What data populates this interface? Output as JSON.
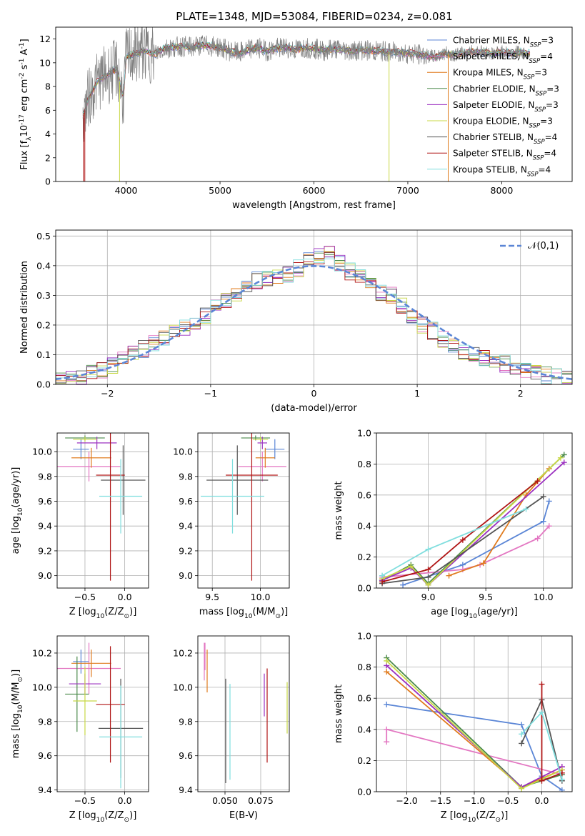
{
  "figure": {
    "title": "PLATE=1348, MJD=53084, FIBERID=0234, z=0.081"
  },
  "model_labels": [
    "Chabrier MILES, N$_{SSP}$=3",
    "Salpeter MILES, N$_{SSP}$=4",
    "Kroupa MILES, N$_{SSP}$=3",
    "Chabrier ELODIE, N$_{SSP}$=3",
    "Salpeter ELODIE, N$_{SSP}$=3",
    "Kroupa ELODIE, N$_{SSP}$=3",
    "Chabrier STELIB, N$_{SSP}$=4",
    "Salpeter STELIB, N$_{SSP}$=4",
    "Kroupa STELIB, N$_{SSP}$=4"
  ],
  "legend_display": [
    {
      "name": "Chabrier MILES, N",
      "sub": "SSP",
      "tail": "=3",
      "color": "#5b86d6"
    },
    {
      "name": "Salpeter MILES, N",
      "sub": "SSP",
      "tail": "=4",
      "color": "#e377c2"
    },
    {
      "name": "Kroupa MILES, N",
      "sub": "SSP",
      "tail": "=3",
      "color": "#e07b1e"
    },
    {
      "name": "Chabrier ELODIE, N",
      "sub": "SSP",
      "tail": "=3",
      "color": "#4a8a4a"
    },
    {
      "name": "Salpeter ELODIE, N",
      "sub": "SSP",
      "tail": "=3",
      "color": "#9b30c0"
    },
    {
      "name": "Kroupa ELODIE, N",
      "sub": "SSP",
      "tail": "=3",
      "color": "#c8d845"
    },
    {
      "name": "Chabrier STELIB, N",
      "sub": "SSP",
      "tail": "=4",
      "color": "#555555"
    },
    {
      "name": "Salpeter STELIB, N",
      "sub": "SSP",
      "tail": "=4",
      "color": "#b01515"
    },
    {
      "name": "Kroupa STELIB, N",
      "sub": "SSP",
      "tail": "=4",
      "color": "#80dede"
    }
  ],
  "chart_data": [
    {
      "id": "spectrum",
      "type": "line",
      "xlabel": "wavelength [Angstrom, rest frame]",
      "ylabel": "Flux [f$_\\lambda$10$^{-17}$ erg cm$^{-2}$ s$^{-1}$ A$^{-1}$]",
      "xlim": [
        3250,
        8750
      ],
      "ylim": [
        0,
        13
      ],
      "xticks": [
        4000,
        5000,
        6000,
        7000,
        8000
      ],
      "yticks": [
        0,
        2,
        4,
        6,
        8,
        10,
        12
      ],
      "data_color": "#808080",
      "x": [
        3540,
        3600,
        3700,
        3800,
        3900,
        3970,
        4000,
        4100,
        4200,
        4300,
        4400,
        4500,
        4600,
        4700,
        4800,
        4900,
        5000,
        5100,
        5200,
        5300,
        5400,
        5500,
        5600,
        5700,
        5800,
        5900,
        6000,
        6100,
        6200,
        6300,
        6400,
        6500,
        6600,
        6700,
        6800,
        6900,
        7000,
        7100,
        7200,
        7300,
        7400,
        7500,
        7600,
        7700,
        7800,
        7900,
        8000,
        8100,
        8200,
        8300
      ],
      "y": [
        5.5,
        7.0,
        8.5,
        9.0,
        9.5,
        7.0,
        10.5,
        10.8,
        11.0,
        10.7,
        11.2,
        11.3,
        11.4,
        11.3,
        11.5,
        11.4,
        11.3,
        11.0,
        10.8,
        11.1,
        11.3,
        11.0,
        11.2,
        11.3,
        11.1,
        11.3,
        11.2,
        11.0,
        11.2,
        11.1,
        11.0,
        11.1,
        11.0,
        11.0,
        10.9,
        10.9,
        10.8,
        10.7,
        10.6,
        10.5,
        10.8,
        10.7,
        10.8,
        11.0,
        10.9,
        10.8,
        10.9,
        10.8,
        10.9,
        10.8
      ],
      "grid": false,
      "legend": "upper right"
    },
    {
      "id": "residual-histogram",
      "type": "line",
      "xlabel": "(data-model)/error",
      "ylabel": "Normed distribution",
      "xlim": [
        -2.5,
        2.5
      ],
      "ylim": [
        0,
        0.52
      ],
      "xticks": [
        -2,
        -1,
        0,
        1,
        2
      ],
      "yticks": [
        0.0,
        0.1,
        0.2,
        0.3,
        0.4,
        0.5
      ],
      "reference": {
        "label": "$\\mathcal{N}(0,1)$",
        "type": "gaussian",
        "mu": 0,
        "sigma": 1,
        "color": "#5b86d6"
      },
      "bin_edges": [
        -2.5,
        -2.4,
        -2.3,
        -2.2,
        -2.1,
        -2.0,
        -1.9,
        -1.8,
        -1.7,
        -1.6,
        -1.5,
        -1.4,
        -1.3,
        -1.2,
        -1.1,
        -1.0,
        -0.9,
        -0.8,
        -0.7,
        -0.6,
        -0.5,
        -0.4,
        -0.3,
        -0.2,
        -0.1,
        0.0,
        0.1,
        0.2,
        0.3,
        0.4,
        0.5,
        0.6,
        0.7,
        0.8,
        0.9,
        1.0,
        1.1,
        1.2,
        1.3,
        1.4,
        1.5,
        1.6,
        1.7,
        1.8,
        1.9,
        2.0,
        2.1,
        2.2,
        2.3,
        2.4,
        2.5
      ],
      "base_values": [
        0.02,
        0.022,
        0.03,
        0.04,
        0.05,
        0.06,
        0.08,
        0.11,
        0.12,
        0.14,
        0.15,
        0.17,
        0.19,
        0.21,
        0.23,
        0.27,
        0.28,
        0.3,
        0.33,
        0.35,
        0.36,
        0.37,
        0.37,
        0.39,
        0.42,
        0.43,
        0.44,
        0.41,
        0.38,
        0.36,
        0.33,
        0.31,
        0.3,
        0.27,
        0.23,
        0.2,
        0.18,
        0.15,
        0.13,
        0.11,
        0.1,
        0.085,
        0.08,
        0.07,
        0.06,
        0.045,
        0.035,
        0.03,
        0.025,
        0.02
      ],
      "grid": true,
      "legend": "upper right"
    },
    {
      "id": "age-vs-metallicity",
      "type": "scatter",
      "xlabel": "Z [log$_{10}$($Z/Z_\\odot$)]",
      "ylabel": "age  [log$_{10}$($age/yr$)]",
      "xlim": [
        -0.85,
        0.3
      ],
      "ylim": [
        8.9,
        10.15
      ],
      "xticks": [
        -0.5,
        0.0
      ],
      "yticks": [
        9.0,
        9.2,
        9.4,
        9.6,
        9.8,
        10.0
      ],
      "points": [
        {
          "x": -0.55,
          "xerr": 0.1,
          "y": 10.02,
          "yerr": 0.08
        },
        {
          "x": -0.45,
          "xerr": 0.4,
          "y": 9.88,
          "yerr": 0.12
        },
        {
          "x": -0.42,
          "xerr": 0.25,
          "y": 9.95,
          "yerr": 0.08
        },
        {
          "x": -0.5,
          "xerr": 0.25,
          "y": 10.11,
          "yerr": 0.02
        },
        {
          "x": -0.35,
          "xerr": 0.25,
          "y": 10.07,
          "yerr": 0.05
        },
        {
          "x": -0.5,
          "xerr": 0.15,
          "y": 10.1,
          "yerr": 0.02
        },
        {
          "x": -0.02,
          "xerr": 0.28,
          "y": 9.77,
          "yerr": 0.28
        },
        {
          "x": -0.18,
          "xerr": 0.18,
          "y": 9.81,
          "yerr": 0.85
        },
        {
          "x": -0.05,
          "xerr": 0.27,
          "y": 9.64,
          "yerr": 0.3
        }
      ],
      "grid": true
    },
    {
      "id": "age-vs-mass",
      "type": "scatter",
      "xlabel": "mass [log$_{10}$($M/M_\\odot$)]",
      "ylabel": "",
      "xlim": [
        9.35,
        10.3
      ],
      "ylim": [
        8.9,
        10.15
      ],
      "xticks": [
        9.5,
        10.0
      ],
      "yticks": [
        9.0,
        9.2,
        9.4,
        9.6,
        9.8,
        10.0
      ],
      "points": [
        {
          "x": 10.15,
          "xerr": 0.1,
          "y": 10.02,
          "yerr": 0.08
        },
        {
          "x": 10.02,
          "xerr": 0.25,
          "y": 9.88,
          "yerr": 0.12
        },
        {
          "x": 10.05,
          "xerr": 0.1,
          "y": 9.95,
          "yerr": 0.08
        },
        {
          "x": 9.95,
          "xerr": 0.15,
          "y": 10.11,
          "yerr": 0.02
        },
        {
          "x": 10.02,
          "xerr": 0.05,
          "y": 10.07,
          "yerr": 0.05
        },
        {
          "x": 10.0,
          "xerr": 0.08,
          "y": 10.1,
          "yerr": 0.02
        },
        {
          "x": 9.76,
          "xerr": 0.32,
          "y": 9.77,
          "yerr": 0.28
        },
        {
          "x": 9.91,
          "xerr": 0.27,
          "y": 9.81,
          "yerr": 0.85
        },
        {
          "x": 9.71,
          "xerr": 0.33,
          "y": 9.64,
          "yerr": 0.3
        }
      ],
      "grid": true
    },
    {
      "id": "mass-weight-vs-age",
      "type": "line",
      "xlabel": "age  [log$_{10}$($age/yr$)]",
      "ylabel": "mass weight",
      "xlim": [
        8.55,
        10.25
      ],
      "ylim": [
        0,
        1.0
      ],
      "xticks": [
        9.0,
        9.5,
        10.0
      ],
      "yticks": [
        0.0,
        0.2,
        0.4,
        0.6,
        0.8,
        1.0
      ],
      "lines": [
        {
          "x": [
            8.78,
            9.3,
            10.0,
            10.05
          ],
          "y": [
            0.02,
            0.15,
            0.43,
            0.56
          ]
        },
        {
          "x": [
            8.6,
            9.3,
            9.45,
            9.95,
            10.05
          ],
          "y": [
            0.07,
            0.12,
            0.15,
            0.32,
            0.4
          ]
        },
        {
          "x": [
            9.18,
            9.48,
            9.85,
            10.05
          ],
          "y": [
            0.08,
            0.16,
            0.6,
            0.77
          ]
        },
        {
          "x": [
            8.6,
            8.85,
            9.0,
            10.18
          ],
          "y": [
            0.05,
            0.15,
            0.03,
            0.86
          ]
        },
        {
          "x": [
            8.6,
            8.85,
            9.0,
            10.18
          ],
          "y": [
            0.05,
            0.13,
            0.02,
            0.81
          ]
        },
        {
          "x": [
            8.6,
            8.85,
            9.0,
            10.15
          ],
          "y": [
            0.06,
            0.14,
            0.02,
            0.84
          ]
        },
        {
          "x": [
            8.6,
            9.0,
            10.0
          ],
          "y": [
            0.03,
            0.07,
            0.59
          ]
        },
        {
          "x": [
            8.6,
            9.0,
            9.3,
            9.95
          ],
          "y": [
            0.04,
            0.12,
            0.31,
            0.69
          ]
        },
        {
          "x": [
            8.6,
            9.0,
            9.85
          ],
          "y": [
            0.08,
            0.25,
            0.51
          ]
        }
      ],
      "grid": true
    },
    {
      "id": "mass-vs-metallicity",
      "type": "scatter",
      "xlabel": "Z [log$_{10}$($Z/Z_\\odot$)]",
      "ylabel": "mass [log$_{10}$($M/M_\\odot$)]",
      "xlim": [
        -0.85,
        0.3
      ],
      "ylim": [
        9.39,
        10.3
      ],
      "xticks": [
        -0.5,
        0.0
      ],
      "yticks": [
        9.4,
        9.6,
        9.8,
        10.0,
        10.2
      ],
      "points": [
        {
          "x": -0.55,
          "xerr": 0.1,
          "y": 10.15,
          "yerr": 0.07
        },
        {
          "x": -0.45,
          "xerr": 0.4,
          "y": 10.11,
          "yerr": 0.15
        },
        {
          "x": -0.42,
          "xerr": 0.25,
          "y": 10.14,
          "yerr": 0.08
        },
        {
          "x": -0.6,
          "xerr": 0.15,
          "y": 9.96,
          "yerr": 0.22
        },
        {
          "x": -0.5,
          "xerr": 0.2,
          "y": 10.02,
          "yerr": 0.06
        },
        {
          "x": -0.5,
          "xerr": 0.15,
          "y": 9.92,
          "yerr": 0.2
        },
        {
          "x": -0.05,
          "xerr": 0.28,
          "y": 9.76,
          "yerr": 0.29
        },
        {
          "x": -0.18,
          "xerr": 0.18,
          "y": 9.9,
          "yerr": 0.34
        },
        {
          "x": -0.05,
          "xerr": 0.27,
          "y": 9.71,
          "yerr": 0.3
        }
      ],
      "grid": true
    },
    {
      "id": "mass-vs-ebv",
      "type": "scatter",
      "xlabel": "E(B-V)",
      "ylabel": "",
      "xlim": [
        0.031,
        0.095
      ],
      "ylim": [
        9.39,
        10.3
      ],
      "xticks": [
        0.05,
        0.075
      ],
      "yticks": [
        9.4,
        9.6,
        9.8,
        10.0,
        10.2
      ],
      "bars": [
        {
          "x": 0.036,
          "y0": 10.1,
          "y1": 10.26
        },
        {
          "x": 0.0355,
          "y0": 10.04,
          "y1": 10.26
        },
        {
          "x": 0.0375,
          "y0": 9.97,
          "y1": 10.22
        },
        {
          "x": 0.0505,
          "y0": 9.44,
          "y1": 10.05
        },
        {
          "x": 0.0535,
          "y0": 9.46,
          "y1": 10.02
        },
        {
          "x": 0.0775,
          "y0": 9.83,
          "y1": 10.08
        },
        {
          "x": 0.0795,
          "y0": 9.56,
          "y1": 10.11
        },
        {
          "x": 0.0935,
          "y0": 9.73,
          "y1": 10.03
        }
      ],
      "grid": true
    },
    {
      "id": "mass-weight-vs-metallicity",
      "type": "line",
      "xlabel": "Z [log$_{10}$($Z/Z_\\odot$)]",
      "ylabel": "mass weight",
      "xlim": [
        -2.45,
        0.45
      ],
      "ylim": [
        0,
        1.0
      ],
      "xticks": [
        -2.0,
        -1.5,
        -1.0,
        -0.5,
        0.0
      ],
      "yticks": [
        0.0,
        0.2,
        0.4,
        0.6,
        0.8,
        1.0
      ],
      "lines": [
        {
          "x": [
            -2.3,
            -0.3,
            0.0,
            0.3
          ],
          "y": [
            0.56,
            0.43,
            0.1,
            0.01
          ]
        },
        {
          "x": [
            -2.3,
            -2.3,
            0.3,
            0.3
          ],
          "y": [
            0.32,
            0.4,
            0.11,
            0.16
          ]
        },
        {
          "x": [
            -2.3,
            -0.3,
            0.3
          ],
          "y": [
            0.77,
            0.03,
            0.14
          ]
        },
        {
          "x": [
            -2.3,
            -0.3,
            0.3
          ],
          "y": [
            0.86,
            0.03,
            0.11
          ]
        },
        {
          "x": [
            -2.3,
            -0.3,
            0.3
          ],
          "y": [
            0.81,
            0.03,
            0.16
          ]
        },
        {
          "x": [
            -2.3,
            -0.3,
            0.3
          ],
          "y": [
            0.84,
            0.02,
            0.14
          ]
        },
        {
          "x": [
            -0.3,
            0.0,
            0.3
          ],
          "y": [
            0.31,
            0.59,
            0.07
          ]
        },
        {
          "x": [
            -0.0,
            0.0,
            0.3
          ],
          "y": [
            0.69,
            0.07,
            0.12
          ]
        },
        {
          "x": [
            -0.3,
            0.0,
            0.3
          ],
          "y": [
            0.37,
            0.51,
            0.08
          ]
        }
      ],
      "grid": true
    }
  ]
}
